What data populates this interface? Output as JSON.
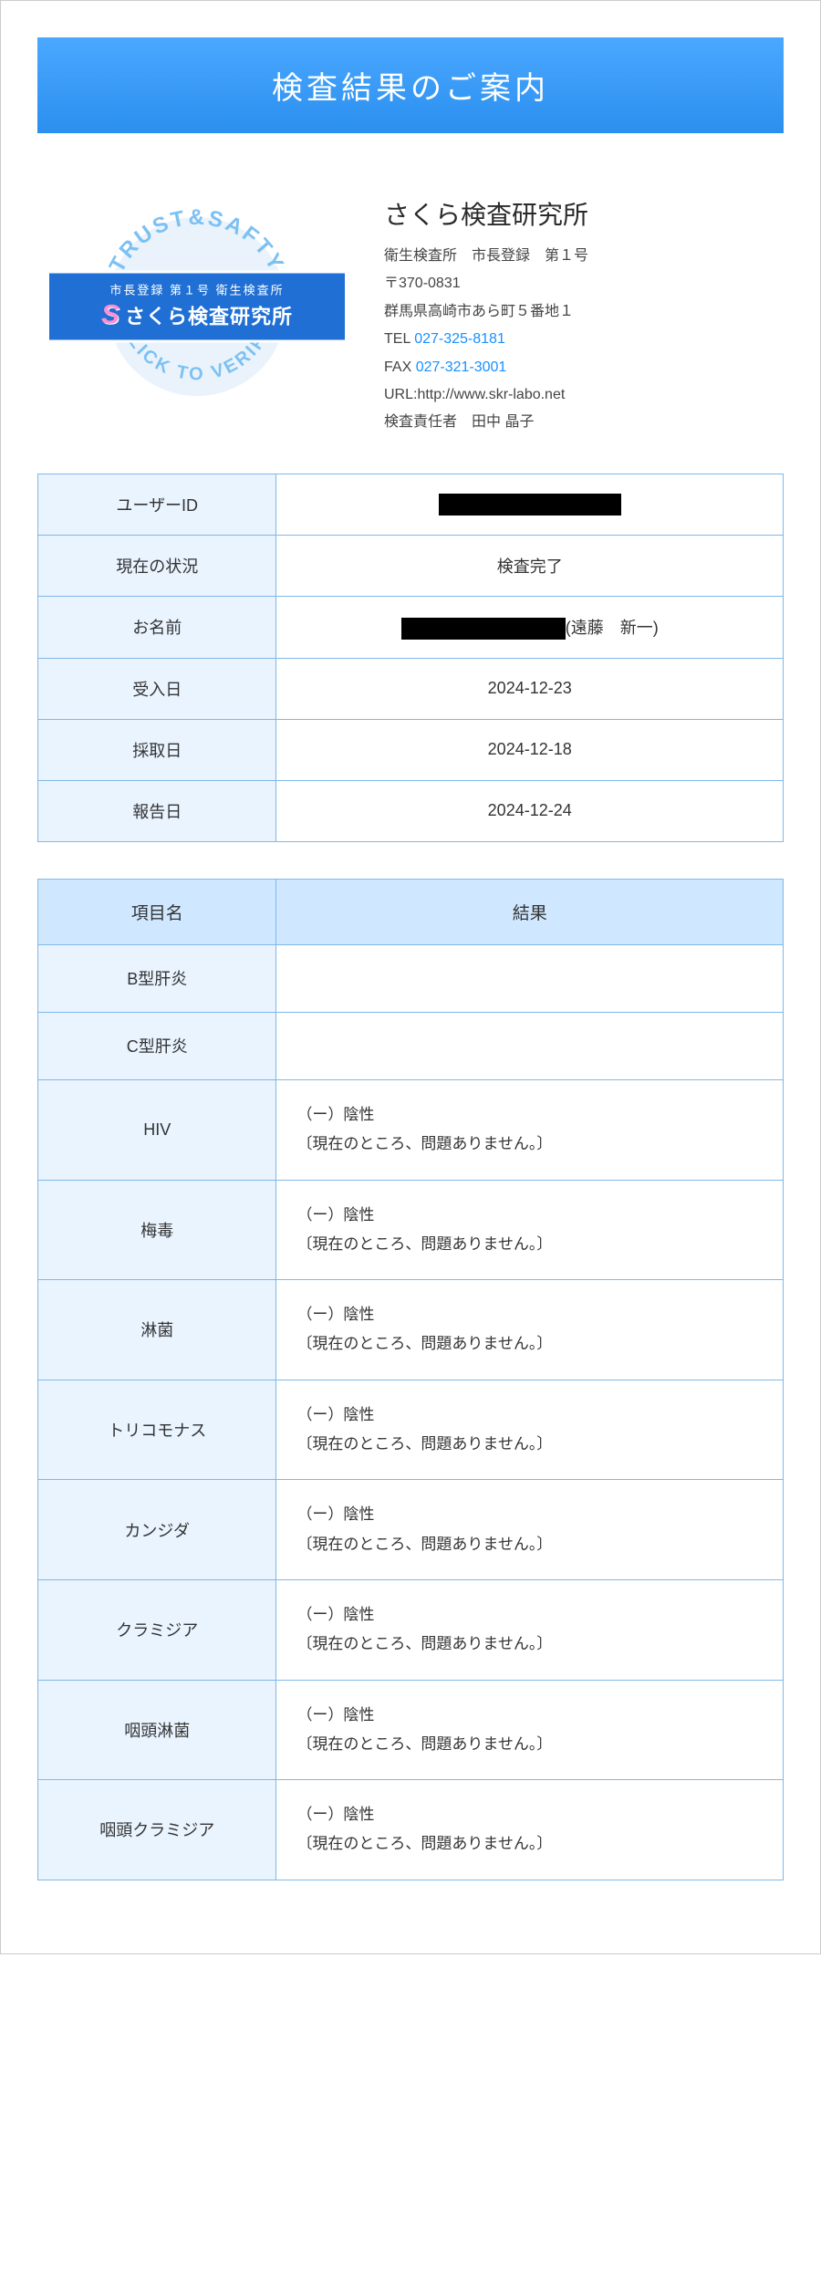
{
  "header": {
    "title": "検査結果のご案内"
  },
  "seal": {
    "top_arc": "TRUST&SAFTY",
    "bottom_arc": "CLICK TO VERIFY",
    "arc_color": "#7cc1f4",
    "strip_sub": "市長登録 第１号 衛生検査所",
    "strip_s": "S",
    "strip_name": "さくら検査研究所"
  },
  "lab": {
    "title": "さくら検査研究所",
    "reg": "衛生検査所　市長登録　第１号",
    "zip": "〒370-0831",
    "addr": "群馬県高崎市あら町５番地１",
    "tel_label": "TEL ",
    "tel": "027-325-8181",
    "fax_label": "FAX ",
    "fax": "027-321-3001",
    "url_label": "URL:",
    "url": "http://www.skr-labo.net",
    "inspector": "検査責任者　田中 晶子"
  },
  "info": {
    "rows": [
      {
        "label": "ユーザーID",
        "value": "",
        "redacted_width": 200
      },
      {
        "label": "現在の状況",
        "value": "検査完了"
      },
      {
        "label": "お名前",
        "value": "(遠藤　新一)",
        "redacted_width": 180
      },
      {
        "label": "受入日",
        "value": "2024-12-23"
      },
      {
        "label": "採取日",
        "value": "2024-12-18"
      },
      {
        "label": "報告日",
        "value": "2024-12-24"
      }
    ]
  },
  "results": {
    "header_item": "項目名",
    "header_result": "結果",
    "neg_line1": "（ー）陰性",
    "neg_line2": "〔現在のところ、問題ありません。〕",
    "rows": [
      {
        "item": "B型肝炎",
        "empty": true
      },
      {
        "item": "C型肝炎",
        "empty": true
      },
      {
        "item": "HIV"
      },
      {
        "item": "梅毒"
      },
      {
        "item": "淋菌"
      },
      {
        "item": "トリコモナス"
      },
      {
        "item": "カンジダ"
      },
      {
        "item": "クラミジア"
      },
      {
        "item": "咽頭淋菌"
      },
      {
        "item": "咽頭クラミジア"
      }
    ]
  },
  "colors": {
    "border": "#7fb8e8",
    "label_bg": "#e9f4ff",
    "header_bg": "#cfe8ff"
  }
}
